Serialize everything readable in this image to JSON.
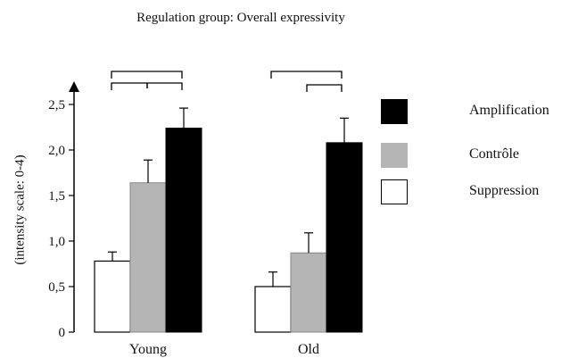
{
  "chart_data": {
    "type": "bar",
    "title": "Regulation group: Overall expressivity",
    "ylabel": "(intensity scale: 0-4)",
    "xlabel": "",
    "ylim": [
      0,
      2.5
    ],
    "yticks": [
      "0",
      "0,5",
      "1,0",
      "1,5",
      "2,0",
      "2,5"
    ],
    "categories": [
      "Young",
      "Old"
    ],
    "series": [
      {
        "name": "Suppression",
        "color": "#ffffff",
        "values": [
          0.78,
          0.5
        ],
        "errors": [
          0.1,
          0.16
        ]
      },
      {
        "name": "Contrôle",
        "color": "#b5b5b5",
        "values": [
          1.64,
          0.87
        ],
        "errors": [
          0.25,
          0.22
        ]
      },
      {
        "name": "Amplification",
        "color": "#000000",
        "values": [
          2.24,
          2.08
        ],
        "errors": [
          0.22,
          0.27
        ]
      }
    ],
    "legend": {
      "placement": "right",
      "items": [
        {
          "label": "Amplification",
          "color": "#000000"
        },
        {
          "label": "Contrôle",
          "color": "#b5b5b5"
        },
        {
          "label": "Suppression",
          "color": "#ffffff"
        }
      ]
    },
    "grid": false
  }
}
